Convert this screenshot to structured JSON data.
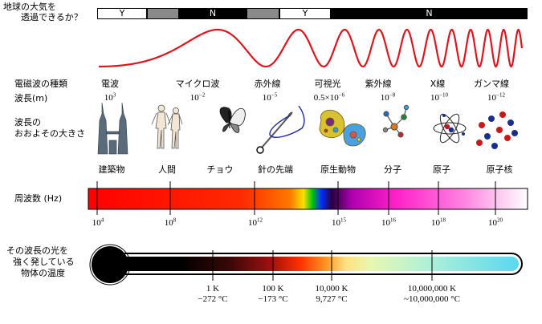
{
  "atmosphere": {
    "question_line1": "地球の大気を",
    "question_line2": "透過できるか？",
    "segments": [
      {
        "label": "Y",
        "color": "#ffffff",
        "text_color": "#000000"
      },
      {
        "label": "",
        "color": "#8a8a8a",
        "text_color": "#000000"
      },
      {
        "label": "N",
        "color": "#000000",
        "text_color": "#ffffff"
      },
      {
        "label": "",
        "color": "#8a8a8a",
        "text_color": "#000000"
      },
      {
        "label": "Y",
        "color": "#ffffff",
        "text_color": "#000000"
      },
      {
        "label": "N",
        "color": "#000000",
        "text_color": "#ffffff"
      }
    ]
  },
  "wave_color": "#e0141c",
  "bands": {
    "row_label": "電磁波の種類",
    "wavelength_label": "波長(m)",
    "items": [
      {
        "name": "電波",
        "wavelength_base": "10",
        "wavelength_exp": "3"
      },
      {
        "name": "マイクロ波",
        "wavelength_base": "10",
        "wavelength_exp": "−2"
      },
      {
        "name": "赤外線",
        "wavelength_base": "10",
        "wavelength_exp": "−5"
      },
      {
        "name": "可視光",
        "wavelength_base": "0.5×10",
        "wavelength_exp": "−6"
      },
      {
        "name": "紫外線",
        "wavelength_base": "10",
        "wavelength_exp": "−8"
      },
      {
        "name": "X線",
        "wavelength_base": "10",
        "wavelength_exp": "−10"
      },
      {
        "name": "ガンマ線",
        "wavelength_base": "10",
        "wavelength_exp": "−12"
      }
    ]
  },
  "size": {
    "label_line1": "波長の",
    "label_line2": "おおよその大きさ",
    "items": [
      {
        "name": "建築物",
        "icon": "skyscraper-icon"
      },
      {
        "name": "人間",
        "icon": "humans-icon"
      },
      {
        "name": "チョウ",
        "icon": "butterfly-icon"
      },
      {
        "name": "針の先端",
        "icon": "needle-icon"
      },
      {
        "name": "原生動物",
        "icon": "protozoa-icon"
      },
      {
        "name": "分子",
        "icon": "molecule-icon"
      },
      {
        "name": "原子",
        "icon": "atom-icon"
      },
      {
        "name": "原子核",
        "icon": "nucleus-icon"
      }
    ]
  },
  "frequency": {
    "label": "周波数 (Hz)",
    "ticks": [
      {
        "base": "10",
        "exp": "4"
      },
      {
        "base": "10",
        "exp": "8"
      },
      {
        "base": "10",
        "exp": "12"
      },
      {
        "base": "10",
        "exp": "15"
      },
      {
        "base": "10",
        "exp": "16"
      },
      {
        "base": "10",
        "exp": "18"
      },
      {
        "base": "10",
        "exp": "20"
      }
    ]
  },
  "temperature": {
    "label_line1": "その波長の光を",
    "label_line2": "強く発している",
    "label_line3": "物体の温度",
    "ticks": [
      {
        "kelvin": "1 K",
        "celsius": "−272 °C"
      },
      {
        "kelvin": "100 K",
        "celsius": "−173 °C"
      },
      {
        "kelvin": "10,000 K",
        "celsius": "9,727 °C"
      },
      {
        "kelvin": "10,000,000 K",
        "celsius": "~10,000,000 °C"
      }
    ]
  }
}
